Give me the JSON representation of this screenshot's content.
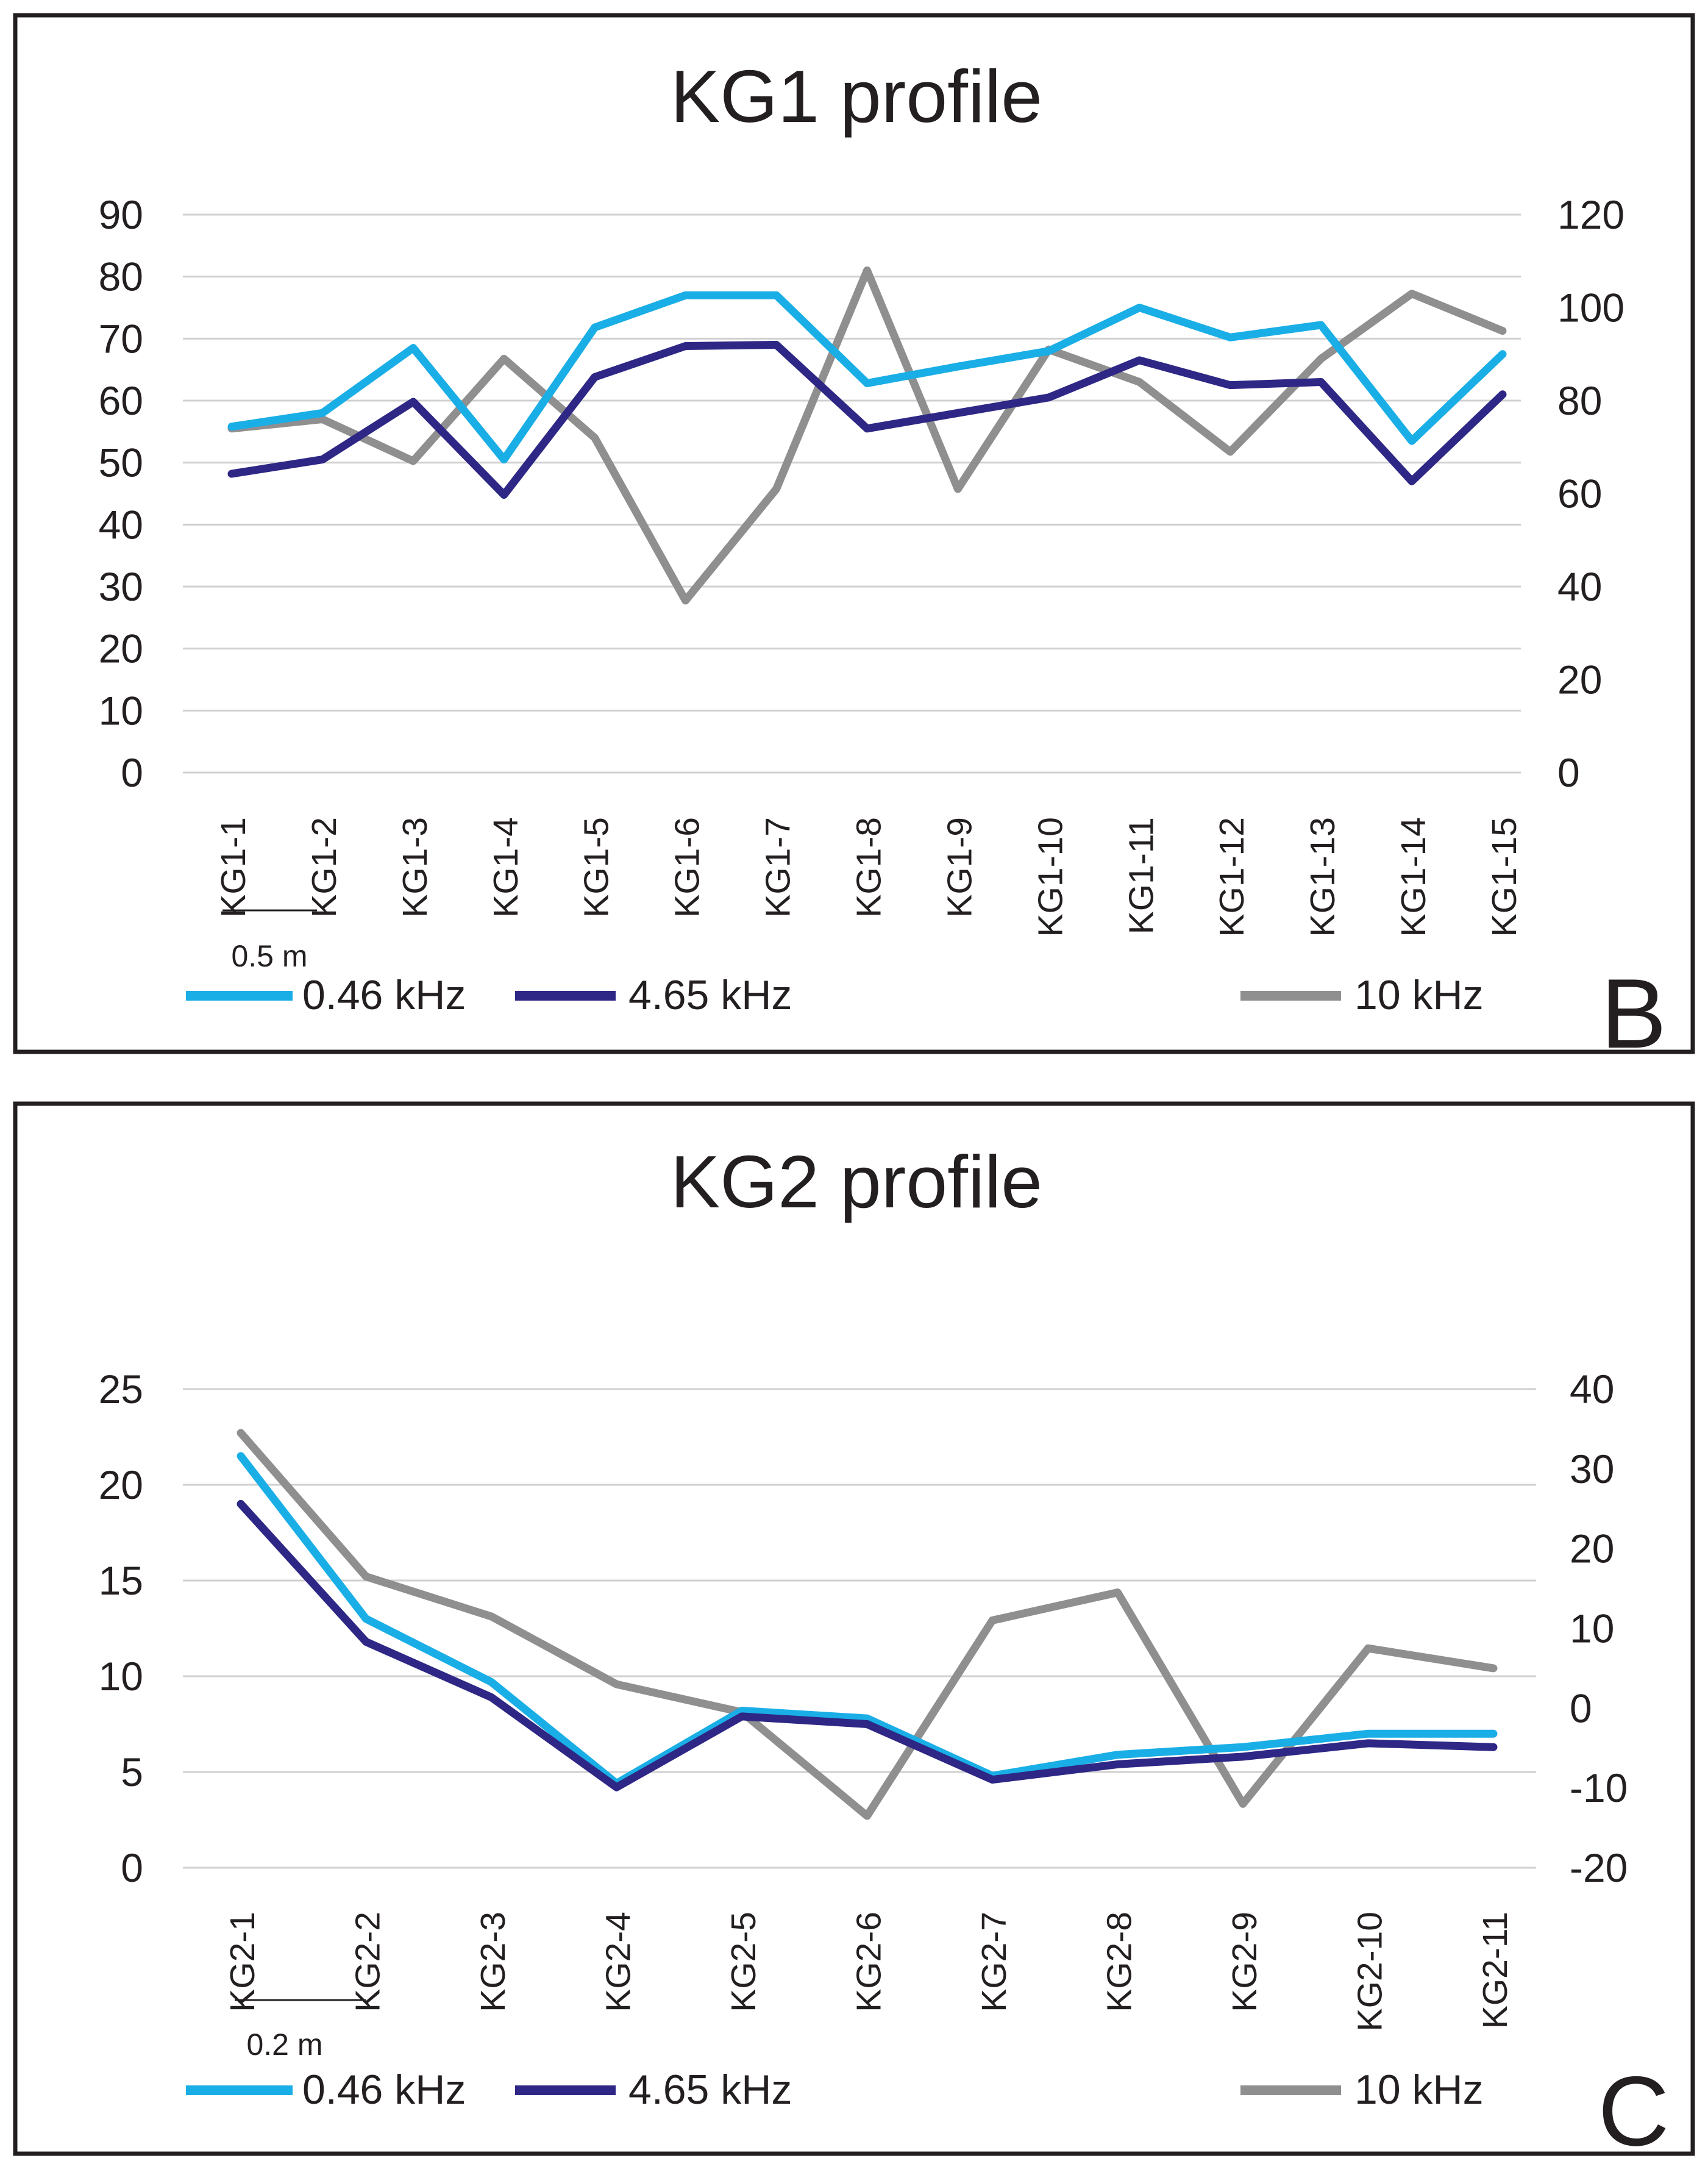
{
  "colors": {
    "s046": "#1aaee6",
    "s465": "#2e2785",
    "s10": "#8f8f8f",
    "text": "#231f20",
    "grid": "#d0d0d0"
  },
  "chart_data": [
    {
      "type": "line",
      "panel_label": "B",
      "title": "KG1 profile",
      "xlabel": "",
      "ylabel": "",
      "categories": [
        "KG1-1",
        "KG1-2",
        "KG1-3",
        "KG1-4",
        "KG1-5",
        "KG1-6",
        "KG1-7",
        "KG1-8",
        "KG1-9",
        "KG1-10",
        "KG1-11",
        "KG1-12",
        "KG1-13",
        "KG1-14",
        "KG1-15"
      ],
      "ylim": [
        0,
        90
      ],
      "yticks": [
        0,
        10,
        20,
        30,
        40,
        50,
        60,
        70,
        80,
        90
      ],
      "y2lim": [
        0,
        120
      ],
      "y2ticks": [
        0,
        20,
        40,
        60,
        80,
        100,
        120
      ],
      "scale_bar": "0.5 m",
      "grid": true,
      "legend": "bottom",
      "series": [
        {
          "name": "0.46 kHz",
          "axis": "left",
          "color": "#1aaee6",
          "values": [
            55.8,
            58,
            68.5,
            50.5,
            71.8,
            77,
            77,
            62.8,
            65.5,
            68,
            75,
            70.2,
            72.2,
            53.5,
            67.5
          ]
        },
        {
          "name": "4.65 kHz",
          "axis": "left",
          "color": "#2e2785",
          "values": [
            48.2,
            50.5,
            59.8,
            44.8,
            63.8,
            68.8,
            69,
            55.5,
            58,
            60.5,
            66.5,
            62.5,
            63,
            47,
            61
          ]
        },
        {
          "name": "10 kHz",
          "axis": "right",
          "color": "#8f8f8f",
          "values": [
            74,
            76,
            67,
            89,
            72,
            37,
            61,
            108,
            61,
            91,
            84,
            69,
            89,
            103,
            95
          ]
        }
      ]
    },
    {
      "type": "line",
      "panel_label": "C",
      "title": "KG2 profile",
      "xlabel": "",
      "ylabel": "",
      "categories": [
        "KG2-1",
        "KG2-2",
        "KG2-3",
        "KG2-4",
        "KG2-5",
        "KG2-6",
        "KG2-7",
        "KG2-8",
        "KG2-9",
        "KG2-10",
        "KG2-11"
      ],
      "ylim": [
        0,
        25
      ],
      "yticks": [
        0,
        5,
        10,
        15,
        20,
        25
      ],
      "y2lim": [
        -20,
        40
      ],
      "y2ticks": [
        -20,
        -10,
        0,
        10,
        20,
        30,
        40
      ],
      "scale_bar": "0.2 m",
      "grid": true,
      "legend": "bottom",
      "series": [
        {
          "name": "0.46 kHz",
          "axis": "left",
          "color": "#1aaee6",
          "values": [
            21.5,
            13,
            9.7,
            4.4,
            8.2,
            7.8,
            4.8,
            5.9,
            6.3,
            7,
            7
          ]
        },
        {
          "name": "4.65 kHz",
          "axis": "left",
          "color": "#2e2785",
          "values": [
            19,
            11.8,
            8.9,
            4.2,
            7.9,
            7.5,
            4.6,
            5.4,
            5.8,
            6.5,
            6.3
          ]
        },
        {
          "name": "10 kHz",
          "axis": "right",
          "color": "#8f8f8f",
          "values": [
            34.5,
            16.5,
            11.5,
            3,
            -0.5,
            -13.5,
            11,
            14.5,
            -12,
            7.5,
            5
          ]
        }
      ]
    }
  ]
}
